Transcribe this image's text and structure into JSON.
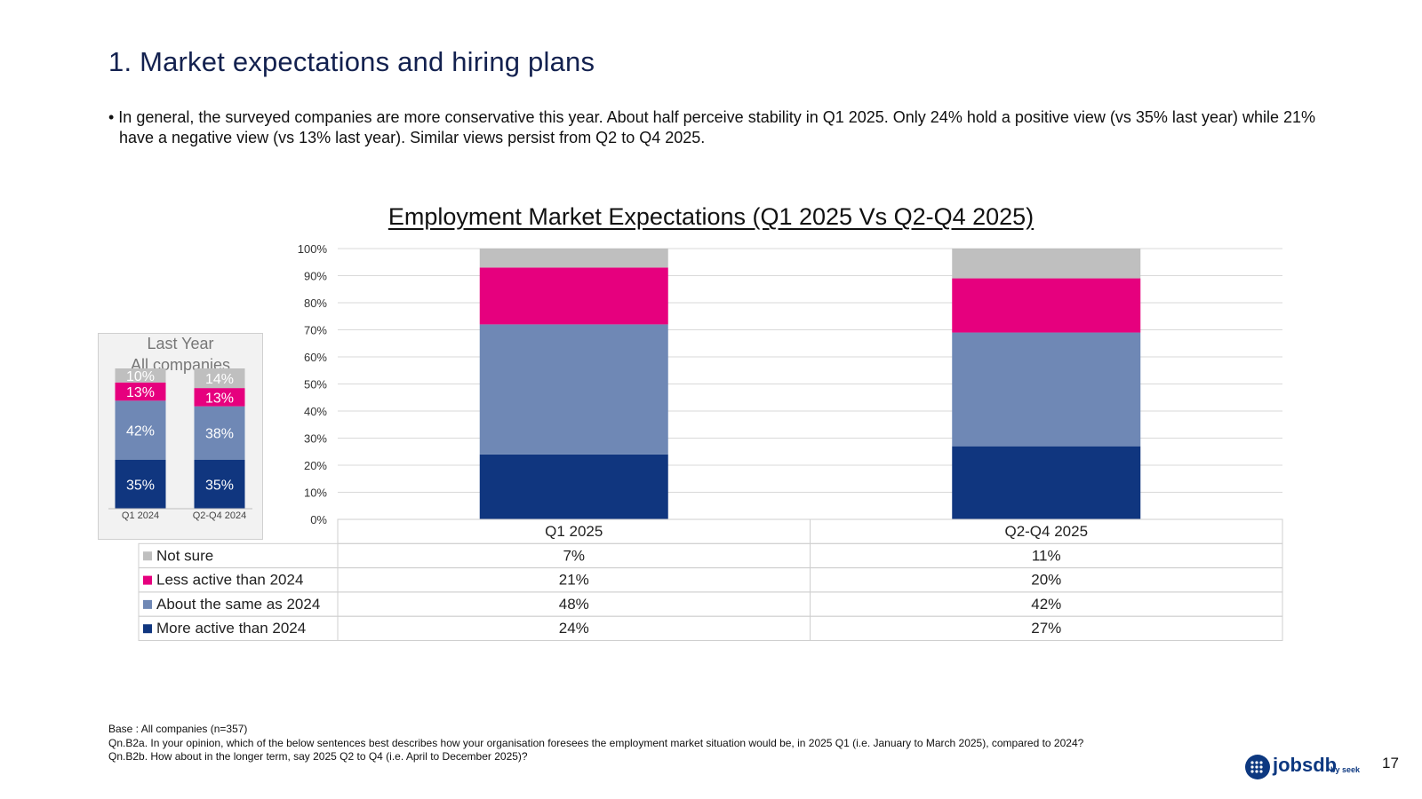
{
  "page": {
    "title": "1. Market expectations and hiring plans",
    "bullet": "• In general, the surveyed companies are more conservative this year.  About half perceive stability in Q1 2025.  Only 24% hold a positive view (vs 35% last year) while 21% have a negative view (vs 13% last year). Similar views persist from Q2 to Q4 2025.",
    "footnote_lines": [
      "Base : All companies  (n=357)",
      "Qn.B2a. In your opinion, which of the below sentences best describes how your organisation foresees the employment market situation would be, in 2025 Q1 (i.e. January to March 2025), compared to 2024?",
      "Qn.B2b. How about in the longer term, say 2025 Q2 to Q4 (i.e. April to December 2025)?"
    ],
    "logo_text": "jobsdb",
    "logo_sub": "by seek",
    "page_number": "17"
  },
  "colors": {
    "not_sure": "#bfbfbf",
    "less_active": "#e6007e",
    "about_same": "#6f88b5",
    "more_active": "#10367f",
    "title_navy": "#13214f"
  },
  "chart_data": [
    {
      "type": "bar",
      "stacked": true,
      "title": "Employment Market Expectations (Q1 2025 Vs Q2-Q4 2025)",
      "categories": [
        "Q1 2025",
        "Q2-Q4 2025"
      ],
      "ylim": [
        0,
        100
      ],
      "yticks": [
        "0%",
        "10%",
        "20%",
        "30%",
        "40%",
        "50%",
        "60%",
        "70%",
        "80%",
        "90%",
        "100%"
      ],
      "series": [
        {
          "name": "More active than 2024",
          "color_key": "more_active",
          "values": [
            24,
            27
          ],
          "labels": [
            "24%",
            "27%"
          ]
        },
        {
          "name": "About the same as 2024",
          "color_key": "about_same",
          "values": [
            48,
            42
          ],
          "labels": [
            "48%",
            "42%"
          ]
        },
        {
          "name": "Less active than 2024",
          "color_key": "less_active",
          "values": [
            21,
            20
          ],
          "labels": [
            "21%",
            "20%"
          ]
        },
        {
          "name": "Not sure",
          "color_key": "not_sure",
          "values": [
            7,
            11
          ],
          "labels": [
            "7%",
            "11%"
          ]
        }
      ],
      "table_row_order": [
        "Not sure",
        "Less active than 2024",
        "About the same as 2024",
        "More active than 2024"
      ],
      "grid": true
    },
    {
      "type": "bar",
      "stacked": true,
      "title": "Last Year",
      "subtitle": "All companies",
      "categories": [
        "Q1 2024",
        "Q2-Q4 2024"
      ],
      "ylim": [
        0,
        100
      ],
      "series": [
        {
          "name": "More active",
          "color_key": "more_active",
          "values": [
            35,
            35
          ],
          "labels": [
            "35%",
            "35%"
          ]
        },
        {
          "name": "About the same",
          "color_key": "about_same",
          "values": [
            42,
            38
          ],
          "labels": [
            "42%",
            "38%"
          ]
        },
        {
          "name": "Less active",
          "color_key": "less_active",
          "values": [
            13,
            13
          ],
          "labels": [
            "13%",
            "13%"
          ]
        },
        {
          "name": "Not sure",
          "color_key": "not_sure",
          "values": [
            10,
            14
          ],
          "labels": [
            "10%",
            "14%"
          ]
        }
      ]
    }
  ]
}
